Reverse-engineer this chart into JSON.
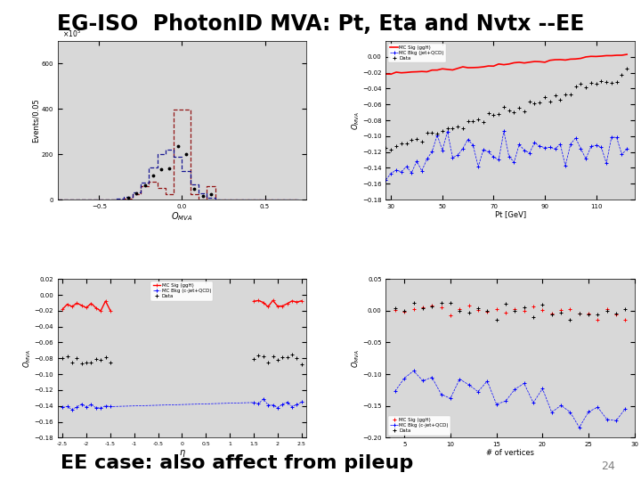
{
  "title": "EG-ISO  PhotonID MVA: Pt, Eta and Nvtx --EE",
  "subtitle": "EE case: also affect from pileup",
  "page_number": "24",
  "background_color": "#ffffff",
  "title_fontsize": 17,
  "subtitle_fontsize": 16,
  "plot_bg": "#d8d8d8",
  "top_left": {
    "xlabel": "O_{MVA}",
    "ylabel": "Events/0.05",
    "ylabel_exp": "x10^5",
    "xlim": [
      -0.75,
      0.75
    ],
    "ylim": [
      0,
      700
    ],
    "yticks": [
      0,
      200,
      400,
      600
    ],
    "xticks": [
      -0.5,
      0,
      0.5
    ]
  },
  "top_right": {
    "xlabel": "Pt [GeV]",
    "ylabel": "O_{MVA}",
    "xlim": [
      28,
      125
    ],
    "ylim": [
      -0.18,
      0.02
    ],
    "yticks": [
      -0.18,
      -0.16,
      -0.14,
      -0.12,
      -0.1,
      -0.08,
      -0.06,
      -0.04,
      -0.02,
      0.0
    ],
    "xticks": [
      30,
      40,
      50,
      60,
      70,
      80,
      90,
      100,
      110,
      120
    ],
    "legend": [
      "Data",
      "MC Sig (ggH)",
      "MC Bkg (jet+QCD)"
    ]
  },
  "bottom_left": {
    "xlabel": "eta",
    "ylabel": "O_{MVA}",
    "xlim": [
      -2.6,
      2.6
    ],
    "ylim": [
      -0.18,
      0.02
    ],
    "yticks": [
      -0.18,
      -0.16,
      -0.14,
      -0.12,
      -0.1,
      -0.08,
      -0.06,
      -0.04,
      -0.02,
      0.0,
      0.02
    ],
    "xticks": [
      -2.5,
      -2,
      -1.5,
      -1,
      -0.5,
      0,
      0.5,
      1,
      1.5,
      2,
      2.5
    ],
    "legend": [
      "Data",
      "MC Sig (ggH)",
      "MC Bkg (c-jet+QCD)"
    ]
  },
  "bottom_right": {
    "xlabel": "# of vertices",
    "ylabel": "O_{MVA}",
    "xlim": [
      3,
      30
    ],
    "ylim": [
      -0.2,
      0.05
    ],
    "yticks": [
      -0.2,
      -0.15,
      -0.1,
      -0.05,
      0.0,
      0.05
    ],
    "xticks": [
      5,
      10,
      15,
      20,
      25,
      30
    ],
    "legend": [
      "Data",
      "MC Sig (ggH)",
      "MC Bkg (c-jet+QCD)"
    ]
  }
}
